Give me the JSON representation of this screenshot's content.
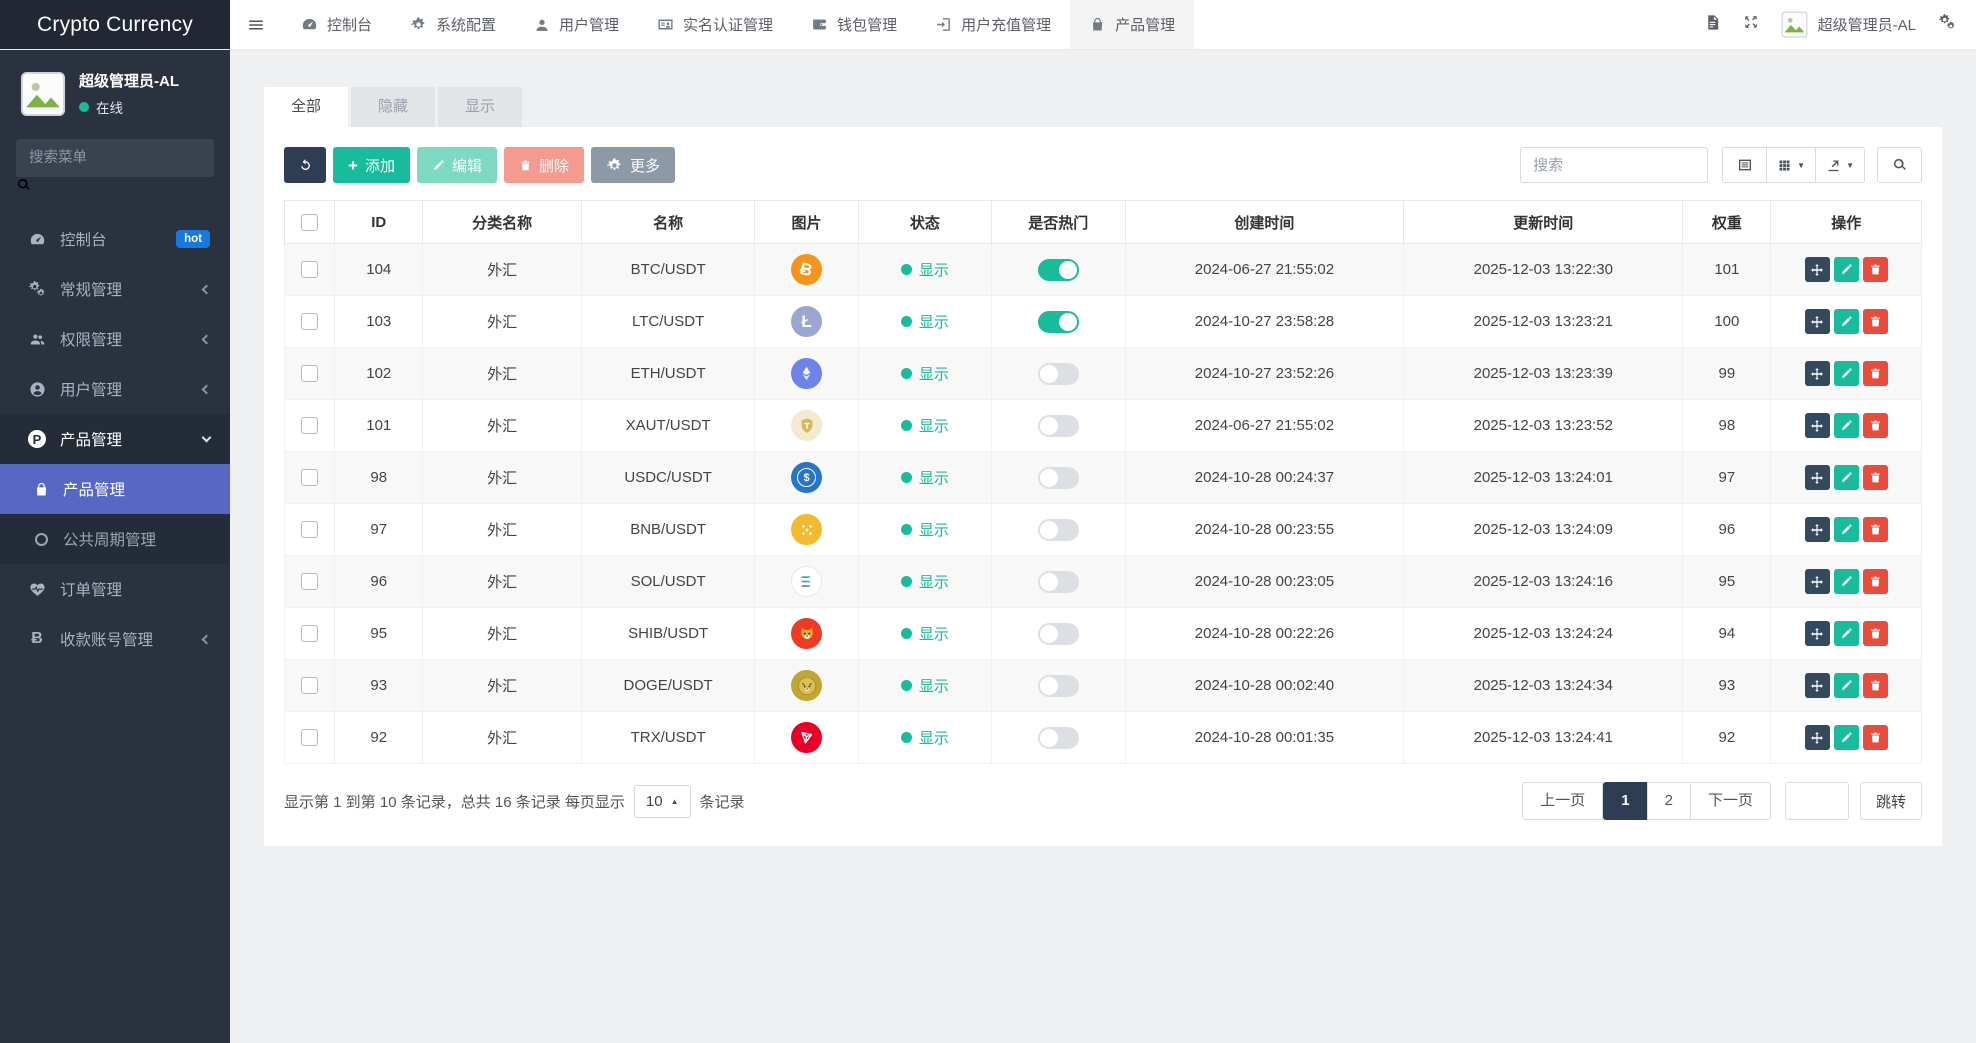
{
  "app": {
    "title": "Crypto Currency"
  },
  "colors": {
    "primary_dark": "#2e3d54",
    "success": "#18bc9c",
    "danger": "#e74c3c",
    "active_menu": "#5867c3",
    "hot_badge": "#1778e0"
  },
  "topnav": {
    "items": [
      {
        "label": "控制台",
        "icon": "tachometer",
        "active": false
      },
      {
        "label": "系统配置",
        "icon": "gear",
        "active": false
      },
      {
        "label": "用户管理",
        "icon": "user",
        "active": false
      },
      {
        "label": "实名认证管理",
        "icon": "id-card",
        "active": false
      },
      {
        "label": "钱包管理",
        "icon": "wallet",
        "active": false
      },
      {
        "label": "用户充值管理",
        "icon": "sign-in",
        "active": false
      },
      {
        "label": "产品管理",
        "icon": "bag",
        "active": true
      }
    ],
    "user_name": "超级管理员-AL"
  },
  "sidebar": {
    "user": {
      "name": "超级管理员-AL",
      "status": "在线"
    },
    "search_placeholder": "搜索菜单",
    "items": [
      {
        "label": "控制台",
        "icon": "tachometer",
        "badge": "hot"
      },
      {
        "label": "常规管理",
        "icon": "cogs",
        "chevron": true
      },
      {
        "label": "权限管理",
        "icon": "users",
        "chevron": true
      },
      {
        "label": "用户管理",
        "icon": "user-circle",
        "chevron": true
      },
      {
        "label": "产品管理",
        "icon": "product",
        "open": true,
        "children": [
          {
            "label": "产品管理",
            "icon": "bag",
            "active": true
          },
          {
            "label": "公共周期管理",
            "icon": "circle-o"
          }
        ]
      },
      {
        "label": "订单管理",
        "icon": "heartbeat"
      },
      {
        "label": "收款账号管理",
        "icon": "bitcoin",
        "chevron": true
      }
    ]
  },
  "tabs": [
    {
      "label": "全部",
      "active": true
    },
    {
      "label": "隐藏",
      "active": false
    },
    {
      "label": "显示",
      "active": false
    }
  ],
  "toolbar": {
    "add": "添加",
    "edit": "编辑",
    "delete": "删除",
    "more": "更多",
    "search_placeholder": "搜索"
  },
  "table": {
    "headers": [
      "ID",
      "分类名称",
      "名称",
      "图片",
      "状态",
      "是否热门",
      "创建时间",
      "更新时间",
      "权重",
      "操作"
    ],
    "status_label": "显示",
    "rows": [
      {
        "id": "104",
        "category": "外汇",
        "name": "BTC/USDT",
        "coin": "btc",
        "status": "显示",
        "hot": true,
        "created": "2024-06-27 21:55:02",
        "updated": "2025-12-03 13:22:30",
        "weight": "101"
      },
      {
        "id": "103",
        "category": "外汇",
        "name": "LTC/USDT",
        "coin": "ltc",
        "status": "显示",
        "hot": true,
        "created": "2024-10-27 23:58:28",
        "updated": "2025-12-03 13:23:21",
        "weight": "100"
      },
      {
        "id": "102",
        "category": "外汇",
        "name": "ETH/USDT",
        "coin": "eth",
        "status": "显示",
        "hot": false,
        "created": "2024-10-27 23:52:26",
        "updated": "2025-12-03 13:23:39",
        "weight": "99"
      },
      {
        "id": "101",
        "category": "外汇",
        "name": "XAUT/USDT",
        "coin": "xaut",
        "status": "显示",
        "hot": false,
        "created": "2024-06-27 21:55:02",
        "updated": "2025-12-03 13:23:52",
        "weight": "98"
      },
      {
        "id": "98",
        "category": "外汇",
        "name": "USDC/USDT",
        "coin": "usdc",
        "status": "显示",
        "hot": false,
        "created": "2024-10-28 00:24:37",
        "updated": "2025-12-03 13:24:01",
        "weight": "97"
      },
      {
        "id": "97",
        "category": "外汇",
        "name": "BNB/USDT",
        "coin": "bnb",
        "status": "显示",
        "hot": false,
        "created": "2024-10-28 00:23:55",
        "updated": "2025-12-03 13:24:09",
        "weight": "96"
      },
      {
        "id": "96",
        "category": "外汇",
        "name": "SOL/USDT",
        "coin": "sol",
        "status": "显示",
        "hot": false,
        "created": "2024-10-28 00:23:05",
        "updated": "2025-12-03 13:24:16",
        "weight": "95"
      },
      {
        "id": "95",
        "category": "外汇",
        "name": "SHIB/USDT",
        "coin": "shib",
        "status": "显示",
        "hot": false,
        "created": "2024-10-28 00:22:26",
        "updated": "2025-12-03 13:24:24",
        "weight": "94"
      },
      {
        "id": "93",
        "category": "外汇",
        "name": "DOGE/USDT",
        "coin": "doge",
        "status": "显示",
        "hot": false,
        "created": "2024-10-28 00:02:40",
        "updated": "2025-12-03 13:24:34",
        "weight": "93"
      },
      {
        "id": "92",
        "category": "外汇",
        "name": "TRX/USDT",
        "coin": "trx",
        "status": "显示",
        "hot": false,
        "created": "2024-10-28 00:01:35",
        "updated": "2025-12-03 13:24:41",
        "weight": "92"
      }
    ]
  },
  "pagination": {
    "info_before_size": "显示第 1 到第 10 条记录，总共 16 条记录 每页显示",
    "page_size": "10",
    "info_after_size": "条记录",
    "prev": "上一页",
    "pages": [
      "1",
      "2"
    ],
    "active_page": "1",
    "next": "下一页",
    "jump": "跳转"
  }
}
